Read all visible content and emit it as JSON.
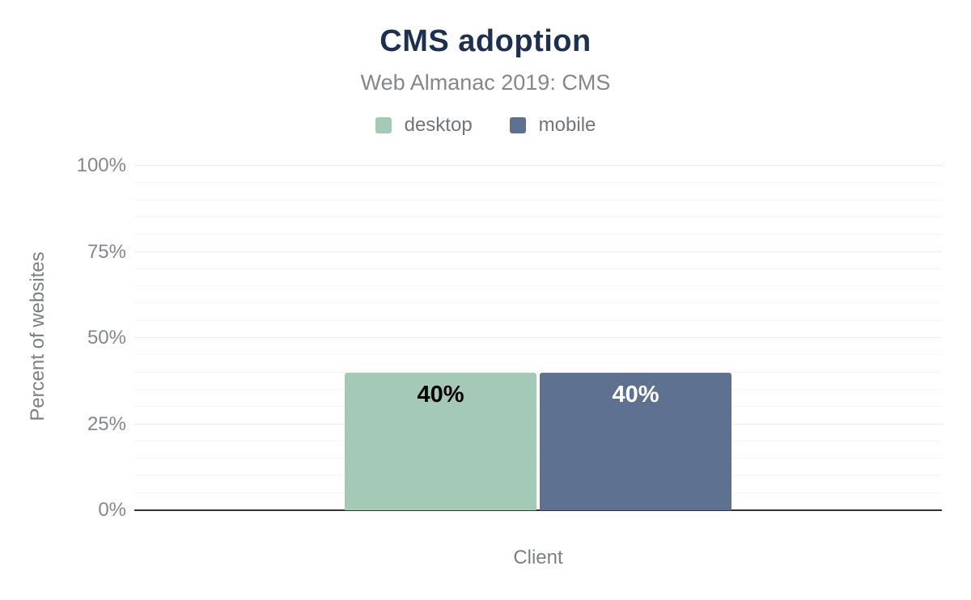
{
  "chart": {
    "title": "CMS adoption",
    "subtitle": "Web Almanac 2019: CMS"
  },
  "chart_data": {
    "type": "bar",
    "title": "CMS adoption",
    "subtitle": "Web Almanac 2019: CMS",
    "categories": [
      "Client"
    ],
    "series": [
      {
        "name": "desktop",
        "values": [
          40
        ],
        "color": "#a5c9b7",
        "value_label": "40%",
        "value_label_color": "#000000"
      },
      {
        "name": "mobile",
        "values": [
          40
        ],
        "color": "#5e7190",
        "value_label": "40%",
        "value_label_color": "#ffffff"
      }
    ],
    "xlabel": "Client",
    "ylabel": "Percent of websites",
    "ylim": [
      0,
      100
    ],
    "y_ticks": [
      {
        "value": 0,
        "label": "0%"
      },
      {
        "value": 25,
        "label": "25%"
      },
      {
        "value": 50,
        "label": "50%"
      },
      {
        "value": 75,
        "label": "75%"
      },
      {
        "value": 100,
        "label": "100%"
      }
    ],
    "y_major_interval": 25,
    "y_minor_interval": 5,
    "grid": true,
    "legend_position": "top",
    "axis_line_color": "#303139",
    "background_color": "#ffffff",
    "title_color": "#1e2f51",
    "text_color": "#85878a"
  }
}
